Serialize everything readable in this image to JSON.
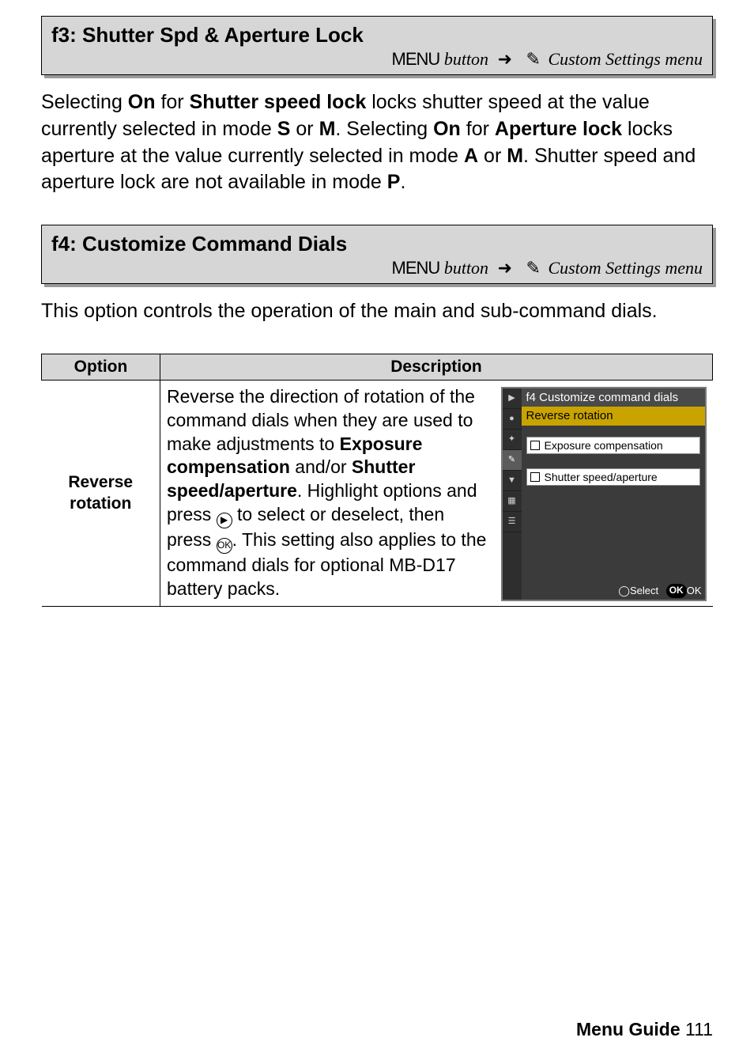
{
  "sections": {
    "f3": {
      "title": "f3: Shutter Spd & Aperture Lock",
      "menu_word": "MENU",
      "sub_suffix": "Custom Settings menu",
      "body_html": "Selecting <b>On</b> for <b>Shutter speed lock</b> locks shutter speed at the value currently selected in mode <span class='mode'>S</span> or <span class='mode'>M</span>.  Selecting <b>On</b> for <b>Aperture lock</b> locks aperture at the value currently selected in mode <span class='mode'>A</span> or <span class='mode'>M</span>.  Shutter speed and aperture lock are not available in mode <span class='mode'>P</span>."
    },
    "f4": {
      "title": "f4: Customize Command Dials",
      "menu_word": "MENU",
      "sub_suffix": "Custom Settings menu",
      "body": "This option controls the operation of the main and sub-command dials."
    }
  },
  "table": {
    "headers": {
      "option": "Option",
      "description": "Description"
    },
    "row": {
      "label": "Reverse rotation",
      "desc_html": "Reverse the direction of rotation of the command dials when they are used to make adjustments to <b>Exposure compensation</b> and/or <b>Shutter speed/aperture</b>. Highlight options and press <span class='circ-btn'>▶</span> to select or deselect, then press <span class='circ-btn'>OK</span>. This setting also applies to the command dials for optional MB-D17 battery packs."
    }
  },
  "cam_menu": {
    "title": "f4 Customize command dials",
    "highlight": "Reverse rotation",
    "opt1": "Exposure compensation",
    "opt2": "Shutter speed/aperture",
    "footer_select": "Select",
    "footer_ok": "OK",
    "side_icons": [
      "▶",
      "●",
      "✦",
      "✎",
      "▼",
      "▦",
      "☰"
    ]
  },
  "footer": {
    "label": "Menu Guide",
    "page": "111"
  },
  "colors": {
    "header_bg": "#d6d6d6",
    "header_shadow": "#9a9a9a",
    "cam_bg": "#3b3b3b",
    "cam_highlight": "#c9a400"
  }
}
